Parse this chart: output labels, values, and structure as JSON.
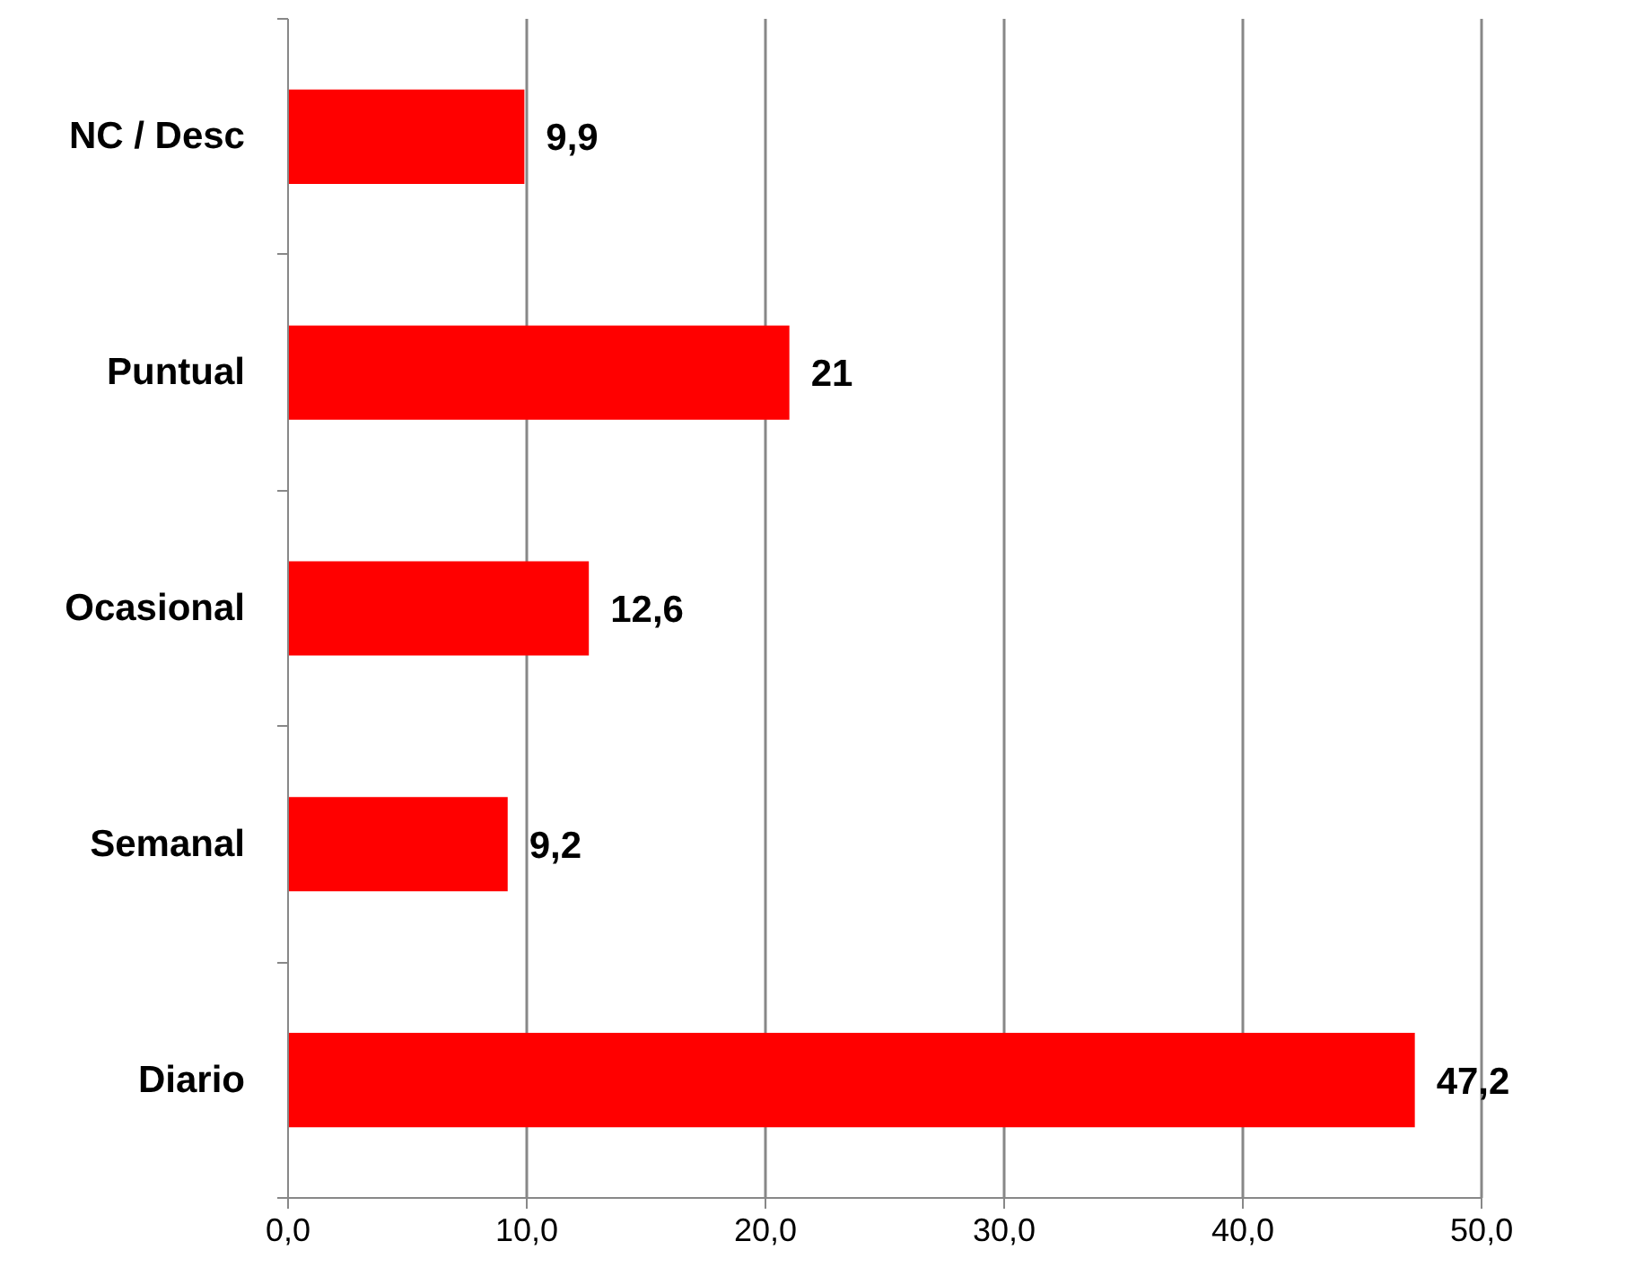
{
  "chart_data": {
    "type": "bar",
    "orientation": "horizontal",
    "categories": [
      "NC / Desc",
      "Puntual",
      "Ocasional",
      "Semanal",
      "Diario"
    ],
    "values": [
      9.9,
      21,
      12.6,
      9.2,
      47.2
    ],
    "value_labels": [
      "9,9",
      "21",
      "12,6",
      "9,2",
      "47,2"
    ],
    "color": "#ff0000",
    "xlim": [
      0,
      50
    ],
    "xticks": [
      {
        "value": 0,
        "label": "0,0"
      },
      {
        "value": 10,
        "label": "10,0"
      },
      {
        "value": 20,
        "label": "20,0"
      },
      {
        "value": 30,
        "label": "30,0"
      },
      {
        "value": 40,
        "label": "40,0"
      },
      {
        "value": 50,
        "label": "50,0"
      }
    ],
    "grid": "x"
  }
}
